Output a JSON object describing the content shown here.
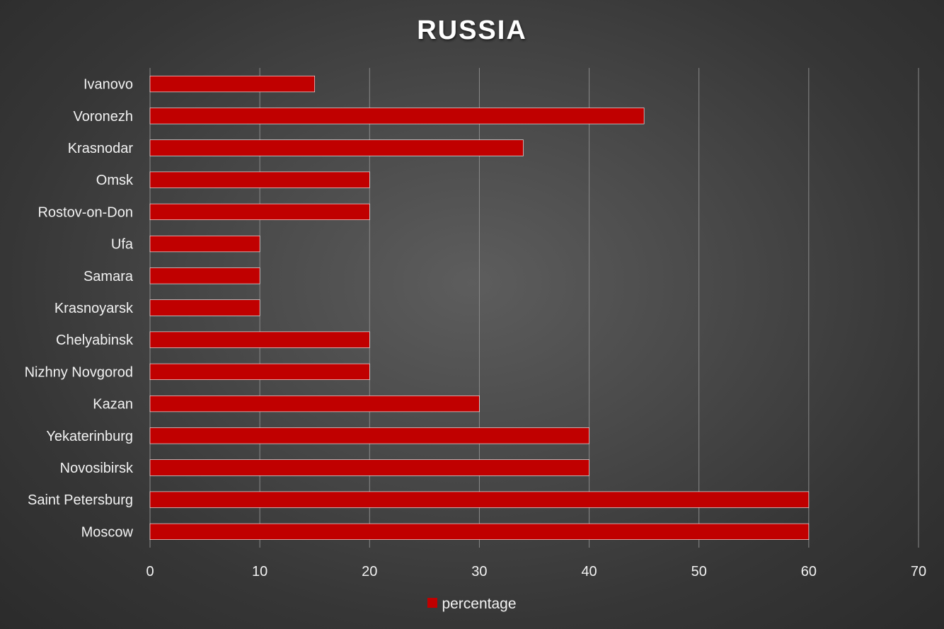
{
  "chart_data": {
    "type": "bar",
    "orientation": "horizontal",
    "title": "RUSSIA",
    "categories": [
      "Ivanovo",
      "Voronezh",
      "Krasnodar",
      "Omsk",
      "Rostov-on-Don",
      "Ufa",
      "Samara",
      "Krasnoyarsk",
      "Chelyabinsk",
      "Nizhny Novgorod",
      "Kazan",
      "Yekaterinburg",
      "Novosibirsk",
      "Saint Petersburg",
      "Moscow"
    ],
    "series": [
      {
        "name": "percentage",
        "color": "#c00000",
        "values": [
          15,
          45,
          34,
          20,
          20,
          10,
          10,
          10,
          20,
          20,
          30,
          40,
          40,
          60,
          60
        ]
      }
    ],
    "xlim": [
      0,
      70
    ],
    "xticks": [
      "0",
      "10",
      "20",
      "30",
      "40",
      "50",
      "60",
      "70"
    ],
    "xlabel": "",
    "ylabel": "",
    "grid": "vertical",
    "legend_position": "bottom"
  }
}
